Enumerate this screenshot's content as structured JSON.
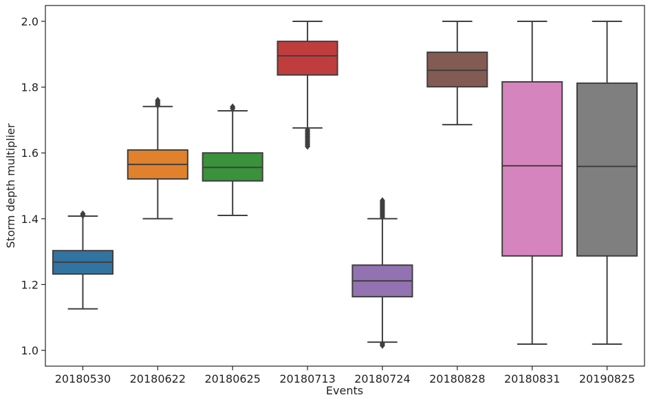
{
  "chart_data": {
    "type": "box",
    "x_label": "Events",
    "y_label": "Storm depth multiplier",
    "categories": [
      "20180530",
      "20180622",
      "20180625",
      "20180713",
      "20180724",
      "20180828",
      "20180831",
      "20190825"
    ],
    "colors": [
      "#3274a1",
      "#e1812c",
      "#3a923a",
      "#c03d3e",
      "#9372b2",
      "#845b53",
      "#d684bd",
      "#7f7f7f"
    ],
    "boxes": [
      {
        "whislo": 1.126,
        "q1": 1.232,
        "med": 1.268,
        "q3": 1.303,
        "whishi": 1.408,
        "fliers": [
          1.41,
          1.415
        ]
      },
      {
        "whislo": 1.4,
        "q1": 1.521,
        "med": 1.565,
        "q3": 1.609,
        "whishi": 1.741,
        "fliers": [
          1.745,
          1.75,
          1.755,
          1.76
        ]
      },
      {
        "whislo": 1.41,
        "q1": 1.515,
        "med": 1.556,
        "q3": 1.6,
        "whishi": 1.728,
        "fliers": [
          1.735,
          1.74
        ]
      },
      {
        "whislo": 1.676,
        "q1": 1.837,
        "med": 1.895,
        "q3": 1.939,
        "whishi": 2.0,
        "fliers": [
          1.67,
          1.665,
          1.66,
          1.655,
          1.65,
          1.645,
          1.64,
          1.635,
          1.63,
          1.625,
          1.62
        ]
      },
      {
        "whislo": 1.025,
        "q1": 1.163,
        "med": 1.211,
        "q3": 1.259,
        "whishi": 1.4,
        "fliers": [
          1.405,
          1.41,
          1.415,
          1.42,
          1.425,
          1.43,
          1.435,
          1.44,
          1.445,
          1.45,
          1.455,
          1.02,
          1.015
        ]
      },
      {
        "whislo": 1.686,
        "q1": 1.801,
        "med": 1.851,
        "q3": 1.906,
        "whishi": 2.0,
        "fliers": []
      },
      {
        "whislo": 1.019,
        "q1": 1.287,
        "med": 1.561,
        "q3": 1.816,
        "whishi": 2.0,
        "fliers": []
      },
      {
        "whislo": 1.019,
        "q1": 1.287,
        "med": 1.559,
        "q3": 1.812,
        "whishi": 2.0,
        "fliers": []
      }
    ],
    "ylim": [
      0.952,
      2.048
    ],
    "yticks": [
      {
        "value": 1,
        "label": "1.0"
      },
      1.2,
      1.4,
      1.6,
      1.8,
      {
        "value": 2,
        "label": "2.0"
      }
    ]
  }
}
